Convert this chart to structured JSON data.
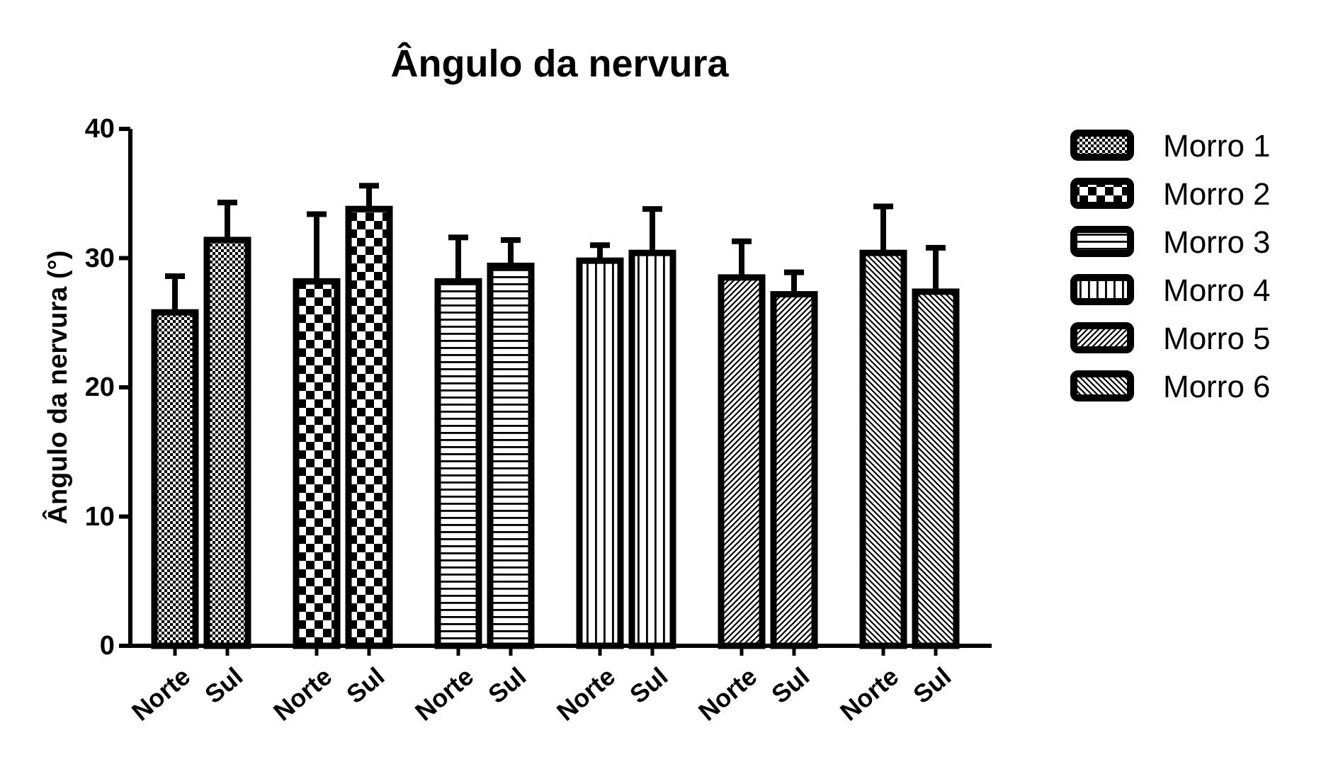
{
  "chart_data": {
    "type": "bar",
    "title": "Ângulo da nervura",
    "ylabel": "Ângulo da nervura (°)",
    "categories": [
      "Norte",
      "Sul",
      "Norte",
      "Sul",
      "Norte",
      "Sul",
      "Norte",
      "Sul",
      "Norte",
      "Sul",
      "Norte",
      "Sul"
    ],
    "series": [
      {
        "name": "Morro 1",
        "color": "#000000",
        "values": [
          25.8,
          31.4,
          null,
          null,
          null,
          null,
          null,
          null,
          null,
          null,
          null,
          null
        ],
        "errors": [
          [
            25.8,
            28.6
          ],
          [
            31.4,
            34.3
          ],
          null,
          null,
          null,
          null,
          null,
          null,
          null,
          null,
          null,
          null
        ]
      },
      {
        "name": "Morro 2",
        "color": "#000000",
        "values": [
          null,
          null,
          28.2,
          33.8,
          null,
          null,
          null,
          null,
          null,
          null,
          null,
          null
        ],
        "errors": [
          null,
          null,
          [
            28.2,
            33.4
          ],
          [
            33.8,
            35.6
          ],
          null,
          null,
          null,
          null,
          null,
          null,
          null,
          null
        ]
      },
      {
        "name": "Morro 3",
        "color": "#000000",
        "values": [
          null,
          null,
          null,
          null,
          28.2,
          29.4,
          null,
          null,
          null,
          null,
          null,
          null
        ],
        "errors": [
          null,
          null,
          null,
          null,
          [
            28.2,
            31.6
          ],
          [
            29.4,
            31.4
          ],
          null,
          null,
          null,
          null,
          null,
          null
        ]
      },
      {
        "name": "Morro 4",
        "color": "#000000",
        "values": [
          null,
          null,
          null,
          null,
          null,
          null,
          29.8,
          30.4,
          null,
          null,
          null,
          null
        ],
        "errors": [
          null,
          null,
          null,
          null,
          null,
          null,
          [
            29.8,
            31.0
          ],
          [
            30.4,
            33.8
          ],
          null,
          null,
          null,
          null
        ]
      },
      {
        "name": "Morro 5",
        "color": "#000000",
        "values": [
          null,
          null,
          null,
          null,
          null,
          null,
          null,
          null,
          28.5,
          27.2,
          null,
          null
        ],
        "errors": [
          null,
          null,
          null,
          null,
          null,
          null,
          null,
          null,
          [
            28.5,
            31.3
          ],
          [
            27.2,
            28.9
          ],
          null,
          null
        ]
      },
      {
        "name": "Morro 6",
        "color": "#000000",
        "values": [
          null,
          null,
          null,
          null,
          null,
          null,
          null,
          null,
          null,
          null,
          30.4,
          27.4
        ],
        "errors": [
          null,
          null,
          null,
          null,
          null,
          null,
          null,
          null,
          null,
          null,
          [
            30.4,
            34.0
          ],
          [
            27.4,
            30.8
          ]
        ]
      }
    ],
    "ylim": [
      0,
      40
    ],
    "yticks": [
      0,
      10,
      20,
      30,
      40
    ],
    "grid": false,
    "legend": "right"
  }
}
